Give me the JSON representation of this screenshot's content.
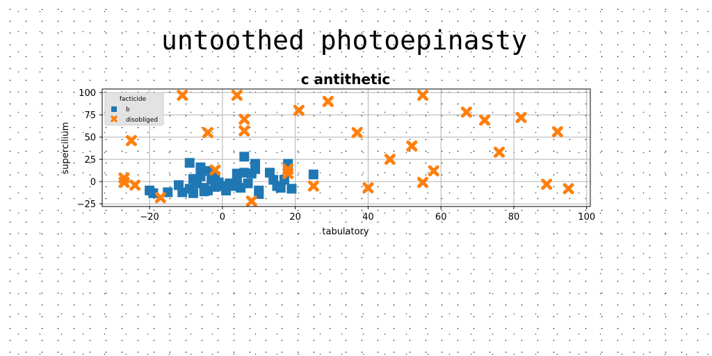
{
  "page": {
    "title": "untoothed photoepinasty"
  },
  "chart_data": {
    "type": "scatter",
    "title": "c antithetic",
    "xlabel": "tabulatory",
    "ylabel": "supercilium",
    "xlim": [
      -33,
      101
    ],
    "ylim": [
      -28,
      104
    ],
    "xticks": [
      -20,
      0,
      20,
      40,
      60,
      80,
      100
    ],
    "yticks": [
      -25,
      0,
      25,
      50,
      75,
      100
    ],
    "grid": true,
    "legend": {
      "title": "facticide",
      "placement": "top-left"
    },
    "series": [
      {
        "name": "b",
        "marker": "square",
        "color": "#1f77b4",
        "points": [
          [
            -20,
            -10
          ],
          [
            -19,
            -13
          ],
          [
            -15,
            -12
          ],
          [
            -12,
            -4
          ],
          [
            -11,
            -12
          ],
          [
            -9,
            -8
          ],
          [
            -8,
            -13
          ],
          [
            -7,
            -2
          ],
          [
            -9,
            21
          ],
          [
            -8,
            3
          ],
          [
            -6,
            16
          ],
          [
            -6,
            12
          ],
          [
            -6,
            6
          ],
          [
            -5,
            -7
          ],
          [
            -4,
            12
          ],
          [
            -4,
            -10
          ],
          [
            -3,
            2
          ],
          [
            -2,
            6
          ],
          [
            -2,
            -6
          ],
          [
            -1,
            -1
          ],
          [
            0,
            -5
          ],
          [
            1,
            -10
          ],
          [
            2,
            -2
          ],
          [
            3,
            -5
          ],
          [
            4,
            3
          ],
          [
            4,
            9
          ],
          [
            5,
            -7
          ],
          [
            6,
            10
          ],
          [
            6,
            28
          ],
          [
            7,
            -2
          ],
          [
            8,
            9
          ],
          [
            9,
            14
          ],
          [
            9,
            20
          ],
          [
            10,
            -10
          ],
          [
            10,
            -14
          ],
          [
            13,
            10
          ],
          [
            14,
            2
          ],
          [
            15,
            -5
          ],
          [
            16,
            -7
          ],
          [
            17,
            2
          ],
          [
            18,
            20
          ],
          [
            19,
            -8
          ],
          [
            25,
            8
          ],
          [
            -5,
            -11
          ]
        ]
      },
      {
        "name": "disobliged",
        "marker": "X",
        "color": "#ff7f0e",
        "points": [
          [
            -27,
            4
          ],
          [
            -27,
            -1
          ],
          [
            -25,
            46
          ],
          [
            -24,
            -4
          ],
          [
            -17,
            -18
          ],
          [
            -11,
            97
          ],
          [
            -4,
            55
          ],
          [
            -2,
            13
          ],
          [
            4,
            97
          ],
          [
            6,
            70
          ],
          [
            6,
            57
          ],
          [
            8,
            -22
          ],
          [
            18,
            14
          ],
          [
            18,
            9
          ],
          [
            21,
            80
          ],
          [
            25,
            -5
          ],
          [
            29,
            90
          ],
          [
            37,
            55
          ],
          [
            40,
            -7
          ],
          [
            46,
            25
          ],
          [
            52,
            40
          ],
          [
            55,
            97
          ],
          [
            55,
            -1
          ],
          [
            58,
            12
          ],
          [
            67,
            78
          ],
          [
            72,
            69
          ],
          [
            76,
            33
          ],
          [
            82,
            72
          ],
          [
            89,
            -3
          ],
          [
            92,
            56
          ],
          [
            95,
            -8
          ]
        ]
      }
    ]
  }
}
